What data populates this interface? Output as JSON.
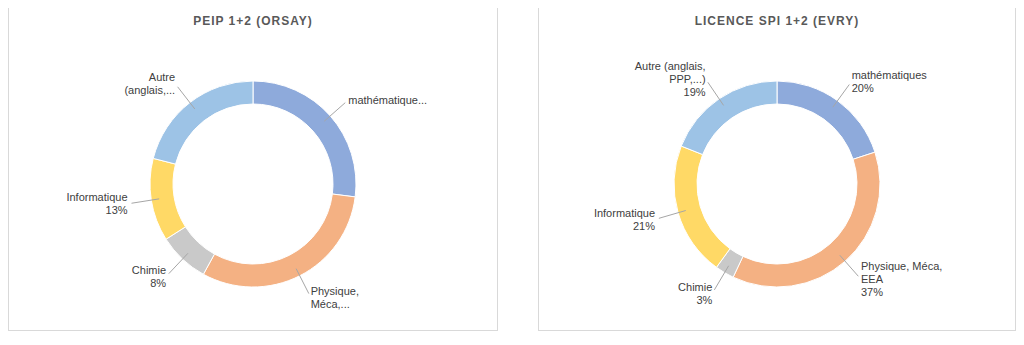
{
  "chart_data": [
    {
      "type": "pie",
      "title": "PEIP 1+2 (ORSAY)",
      "categories": [
        "mathématique...",
        "Physique, Méca,...",
        "Chimie",
        "Informatique",
        "Autre (anglais,..."
      ],
      "values": [
        27,
        31,
        8,
        13,
        21
      ],
      "value_labels": [
        null,
        null,
        "8%",
        "13%",
        null
      ],
      "colors": [
        "#8eaadb",
        "#f4b183",
        "#c9c9c9",
        "#ffd966",
        "#9dc3e6"
      ],
      "data_labels": true
    },
    {
      "type": "pie",
      "title": "LICENCE SPI 1+2 (EVRY)",
      "categories": [
        "mathématiques",
        "Physique, Méca, EEA",
        "Chimie",
        "Informatique",
        "Autre (anglais, PPP,...)"
      ],
      "values": [
        20,
        37,
        3,
        21,
        19
      ],
      "value_labels": [
        "20%",
        "37%",
        "3%",
        "21%",
        "19%"
      ],
      "colors": [
        "#8eaadb",
        "#f4b183",
        "#c9c9c9",
        "#ffd966",
        "#9dc3e6"
      ],
      "data_labels": true
    }
  ]
}
